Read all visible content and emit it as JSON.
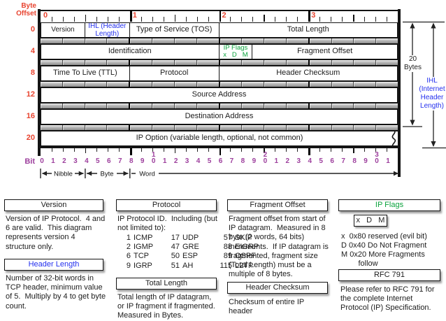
{
  "palette": {
    "red": "#e8432f",
    "blue": "#2430ee",
    "green": "#0aa23c",
    "purple": "#9d3f9d",
    "ink": "#1c1c1c"
  },
  "diagram": {
    "byte_offset_label": "Byte\nOffset",
    "bit_label": "Bit",
    "byte_offsets": [
      "0",
      "4",
      "8",
      "12",
      "16",
      "20"
    ],
    "top_ruler_numbers": [
      "0",
      "1",
      "2",
      "3"
    ],
    "bit_numbers": [
      "0",
      "1",
      "2",
      "3",
      "4",
      "5",
      "6",
      "7",
      "8",
      "9",
      "10",
      "1",
      "2",
      "3",
      "4",
      "5",
      "6",
      "7",
      "8",
      "9",
      "20",
      "1",
      "2",
      "3",
      "4",
      "5",
      "6",
      "7",
      "8",
      "9",
      "30",
      "1"
    ],
    "rows": [
      {
        "offset": "0",
        "cells": [
          {
            "label": "Version",
            "bits": 4,
            "color": "ink"
          },
          {
            "label": "IHL (Header Length)",
            "bits": 4,
            "color": "blue"
          },
          {
            "label": "Type of Service (TOS)",
            "bits": 8,
            "color": "ink"
          },
          {
            "label": "Total Length",
            "bits": 16,
            "color": "ink"
          }
        ]
      },
      {
        "offset": "4",
        "cells": [
          {
            "label": "Identification",
            "bits": 16,
            "color": "ink"
          },
          {
            "label": "IP Flags",
            "sub": "x   D   M",
            "bits": 3,
            "color": "green"
          },
          {
            "label": "Fragment Offset",
            "bits": 13,
            "color": "ink"
          }
        ]
      },
      {
        "offset": "8",
        "cells": [
          {
            "label": "Time To Live (TTL)",
            "bits": 8,
            "color": "ink"
          },
          {
            "label": "Protocol",
            "bits": 8,
            "color": "ink"
          },
          {
            "label": "Header Checksum",
            "bits": 16,
            "color": "ink"
          }
        ]
      },
      {
        "offset": "12",
        "cells": [
          {
            "label": "Source Address",
            "bits": 32,
            "color": "ink"
          }
        ]
      },
      {
        "offset": "16",
        "cells": [
          {
            "label": "Destination Address",
            "bits": 32,
            "color": "ink"
          }
        ]
      },
      {
        "offset": "20",
        "cells": [
          {
            "label": "IP Option (variable length, optional, not common)",
            "bits": 32,
            "color": "ink",
            "wavy": true
          }
        ]
      }
    ],
    "scale": {
      "nibble": "Nibble",
      "byte": "Byte",
      "word": "Word"
    },
    "right": {
      "bytes_label": "20\nBytes",
      "ihl_label": "IHL\n(Internet\nHeader\nLength)"
    }
  },
  "notes": {
    "version": {
      "title": "Version",
      "body": [
        "Version of IP Protocol.  4 and",
        "6 are valid.  This diagram",
        "represents version 4",
        "structure only."
      ]
    },
    "header_length": {
      "title": "Header Length",
      "body": [
        "Number of 32-bit words in",
        "TCP header, minimum value",
        "of 5.  Multiply by 4 to get byte",
        "count."
      ]
    },
    "protocol": {
      "title": "Protocol",
      "body": [
        "IP Protocol ID.  Including (but",
        "not limited to):"
      ],
      "table": [
        [
          "1",
          "ICMP",
          "17",
          "UDP",
          "57",
          "SKIP"
        ],
        [
          "2",
          "IGMP",
          "47",
          "GRE",
          "88",
          "EIGRP"
        ],
        [
          "6",
          "TCP",
          "50",
          "ESP",
          "89",
          "OSPF"
        ],
        [
          "9",
          "IGRP",
          "51",
          "AH",
          "115",
          "L2TP"
        ]
      ]
    },
    "total_length": {
      "title": "Total Length",
      "body": [
        "Total length of IP datagram,",
        "or IP fragment if fragmented.",
        "Measured in Bytes."
      ]
    },
    "fragment_offset": {
      "title": "Fragment Offset",
      "body": [
        "Fragment offset from start of",
        "IP datagram.  Measured in 8",
        "byte (2 words, 64 bits)",
        "increments.  If IP datagram is",
        "fragmented, fragment size",
        "(Total Length) must be a",
        "multiple of 8 bytes."
      ]
    },
    "header_checksum": {
      "title": "Header Checksum",
      "body": [
        "Checksum of entire IP",
        "header"
      ]
    },
    "ip_flags": {
      "title": "IP Flags",
      "flags_box": "x   D   M",
      "body": [
        "x  0x80 reserved (evil bit)",
        "D 0x40 Do Not Fragment",
        "M 0x20 More Fragments",
        "        follow"
      ]
    },
    "rfc": {
      "title": "RFC 791",
      "body": [
        "Please refer to RFC 791 for",
        "the complete Internet",
        "Protocol (IP) Specification."
      ]
    }
  }
}
